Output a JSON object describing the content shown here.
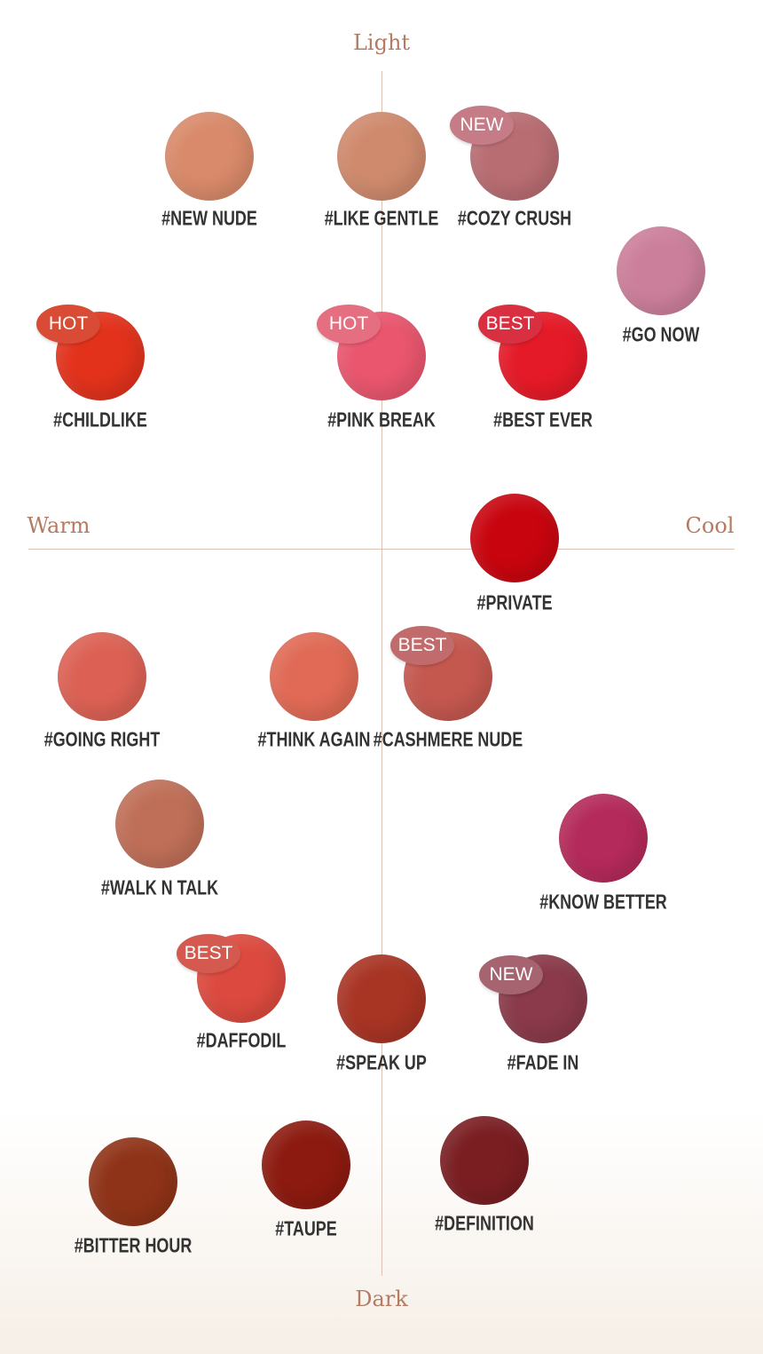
{
  "axes": {
    "top": "Light",
    "bottom": "Dark",
    "left": "Warm",
    "right": "Cool",
    "label_color": "#b57a62"
  },
  "swatches": [
    {
      "name": "#NEW NUDE",
      "color": "#d98a6a"
    },
    {
      "name": "#LIKE GENTLE",
      "color": "#cf8a6d"
    },
    {
      "name": "#COZY CRUSH",
      "color": "#b86d72",
      "badge": "NEW",
      "badge_color": "#c57c86"
    },
    {
      "name": "#GO NOW",
      "color": "#cc7f9b"
    },
    {
      "name": "#CHILDLIKE",
      "color": "#e2321c",
      "badge": "HOT",
      "badge_color": "#d94b35"
    },
    {
      "name": "#PINK BREAK",
      "color": "#e9566e",
      "badge": "HOT",
      "badge_color": "#e56f80"
    },
    {
      "name": "#BEST EVER",
      "color": "#e51a28",
      "badge": "BEST",
      "badge_color": "#d83040"
    },
    {
      "name": "#PRIVATE",
      "color": "#c8050f"
    },
    {
      "name": "#GOING RIGHT",
      "color": "#dc6154"
    },
    {
      "name": "#THINK AGAIN",
      "color": "#e06a55"
    },
    {
      "name": "#CASHMERE NUDE",
      "color": "#c4584f",
      "badge": "BEST",
      "badge_color": "#c16b6c"
    },
    {
      "name": "#WALK N TALK",
      "color": "#bf6f58"
    },
    {
      "name": "#KNOW BETTER",
      "color": "#b42a5a"
    },
    {
      "name": "#DAFFODIL",
      "color": "#dc4a3f",
      "badge": "BEST",
      "badge_color": "#d45a50"
    },
    {
      "name": "#SPEAK UP",
      "color": "#a83424"
    },
    {
      "name": "#FADE IN",
      "color": "#8a3a4a",
      "badge": "NEW",
      "badge_color": "#a66370"
    },
    {
      "name": "#BITTER HOUR",
      "color": "#8f3318"
    },
    {
      "name": "#TAUPE",
      "color": "#8c1a10"
    },
    {
      "name": "#DEFINITION",
      "color": "#7a1e22"
    }
  ]
}
